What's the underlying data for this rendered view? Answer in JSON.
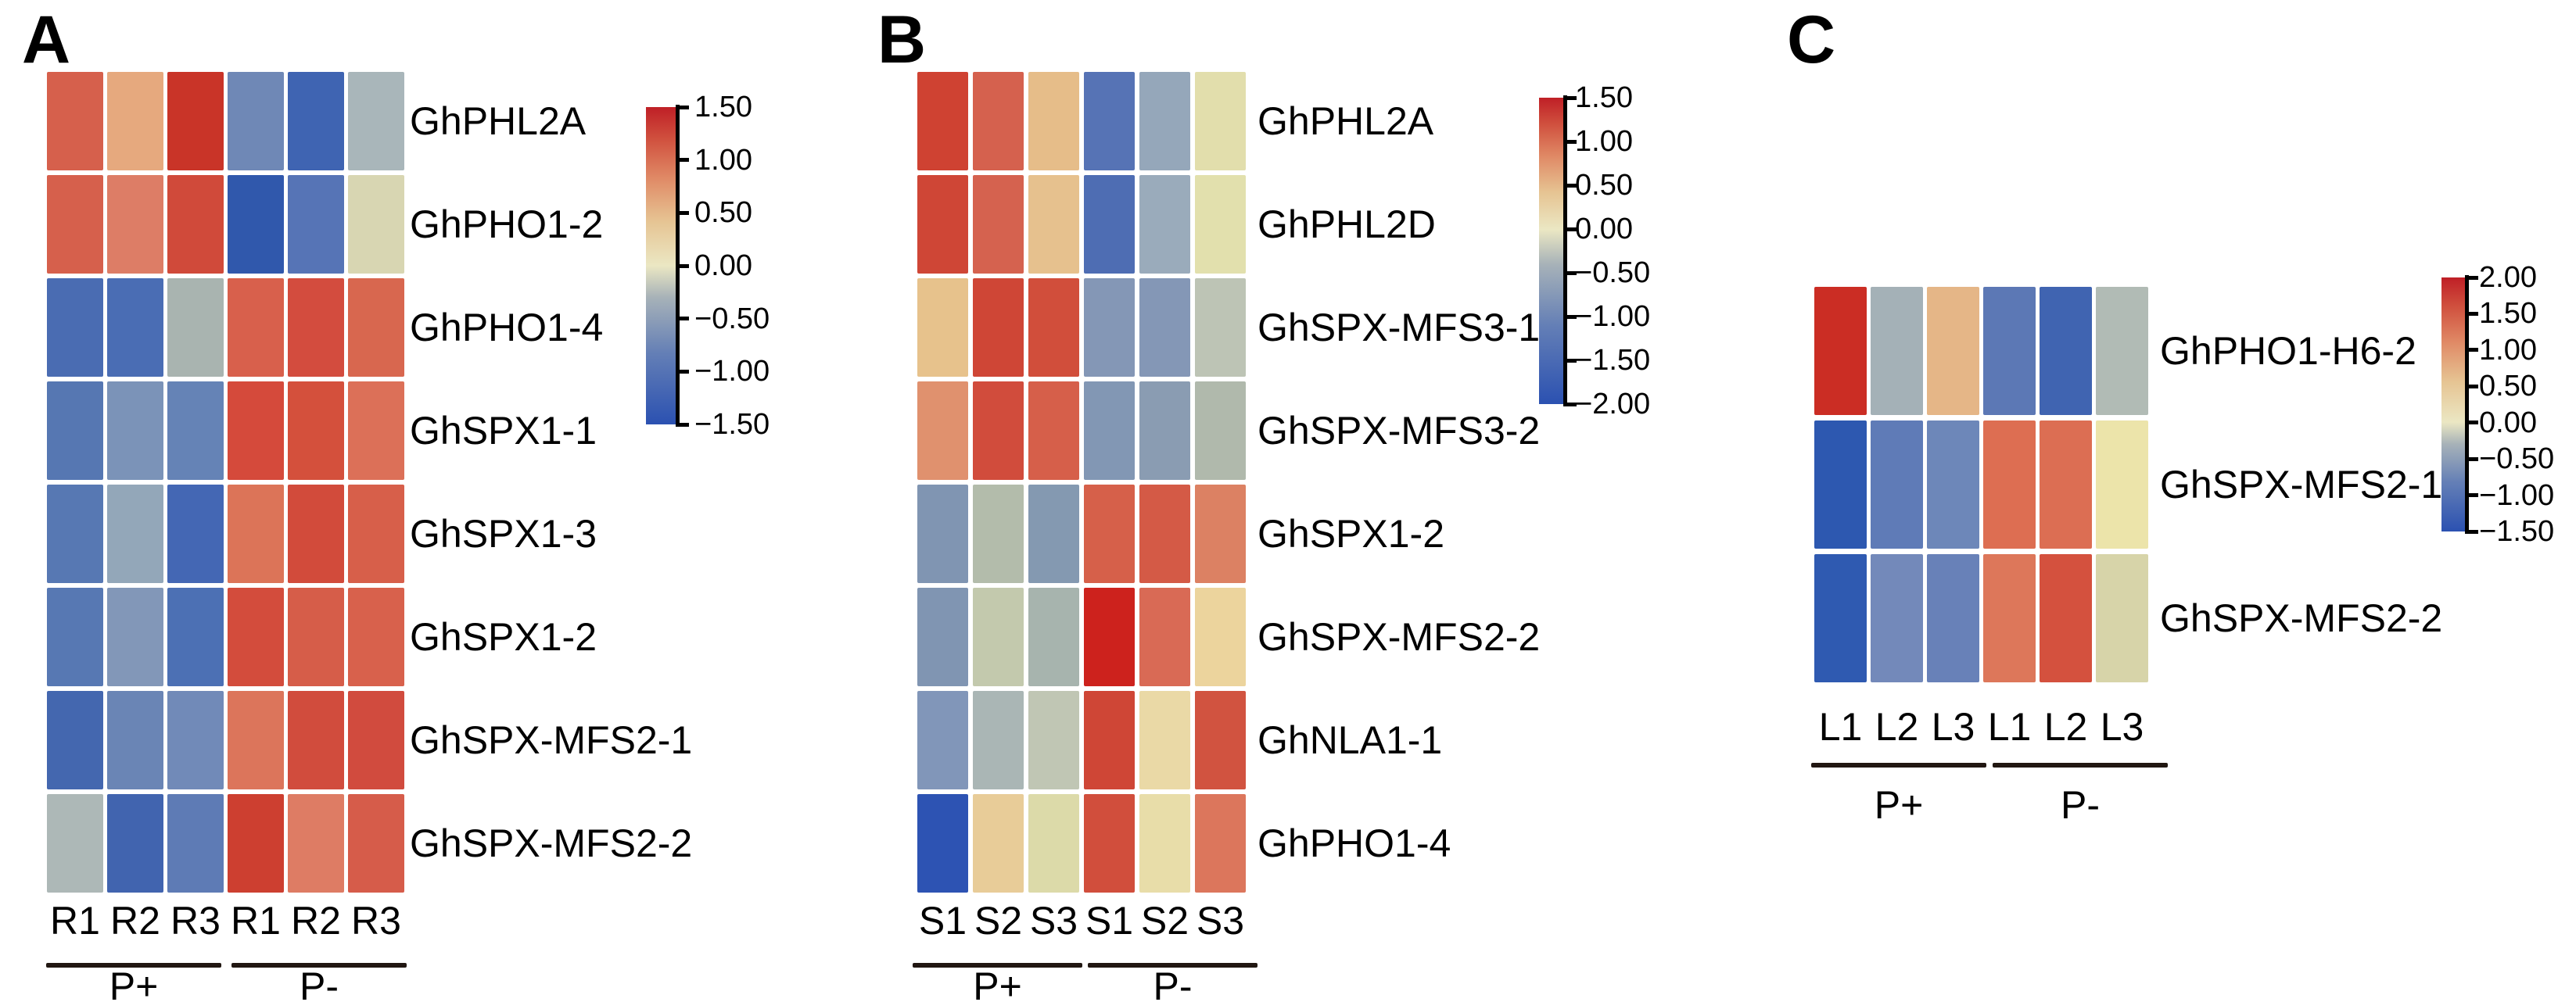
{
  "figure": {
    "colormap": {
      "low": "#2b51b1",
      "mid": "#ebe7c3",
      "high": "#bf1f26"
    },
    "panels": [
      {
        "label": "A",
        "genes": [
          "GhPHL2A",
          "GhPHO1-2",
          "GhPHO1-4",
          "GhSPX1-1",
          "GhSPX1-3",
          "GhSPX1-2",
          "GhSPX-MFS2-1",
          "GhSPX-MFS2-2"
        ],
        "col_labels": [
          "R1",
          "R2",
          "R3",
          "R1",
          "R2",
          "R3"
        ],
        "group_labels": [
          "P+",
          "P-"
        ],
        "colorbar_ticks": [
          "1.50",
          "1.00",
          "0.50",
          "0.00",
          "−0.50",
          "−1.00",
          "−1.50"
        ],
        "cell_colors": [
          [
            "#d6604c",
            "#e6a97e",
            "#c93428",
            "#6f88b6",
            "#3f64b2",
            "#a9b6ba"
          ],
          [
            "#d6604c",
            "#dd7d66",
            "#d04a3a",
            "#3058ac",
            "#5674b6",
            "#d8d6b2"
          ],
          [
            "#4a6cb2",
            "#4a6db4",
            "#a9b4b0",
            "#d8604c",
            "#d34c3e",
            "#d8674f"
          ],
          [
            "#5677b2",
            "#7b93b8",
            "#6583b6",
            "#d54a3b",
            "#d4503c",
            "#dc7058"
          ],
          [
            "#5778b3",
            "#93a7b9",
            "#4467b4",
            "#dc7458",
            "#d24b3b",
            "#d75f4a"
          ],
          [
            "#5778b3",
            "#8297b8",
            "#4c70b4",
            "#d34c3c",
            "#d65d49",
            "#d8614c"
          ],
          [
            "#4467af",
            "#6a85b5",
            "#718ab8",
            "#dc755b",
            "#d14c3d",
            "#d14b3e"
          ],
          [
            "#adb8b7",
            "#4164af",
            "#5e7bb5",
            "#cd3f30",
            "#de7c64",
            "#d65c4a"
          ]
        ]
      },
      {
        "label": "B",
        "genes": [
          "GhPHL2A",
          "GhPHL2D",
          "GhSPX-MFS3-1",
          "GhSPX-MFS3-2",
          "GhSPX1-2",
          "GhSPX-MFS2-2",
          "GhNLA1-1",
          "GhPHO1-4"
        ],
        "col_labels": [
          "S1",
          "S2",
          "S3",
          "S1",
          "S2",
          "S3"
        ],
        "group_labels": [
          "P+",
          "P-"
        ],
        "colorbar_ticks": [
          "1.50",
          "1.00",
          "0.50",
          "0.00",
          "−0.50",
          "−1.00",
          "−1.50",
          "−2.00"
        ],
        "cell_colors": [
          [
            "#cf4232",
            "#d5614e",
            "#e6bd89",
            "#5673b5",
            "#95a7ba",
            "#e2deac"
          ],
          [
            "#cf4636",
            "#d5624f",
            "#e6c18e",
            "#4e6db3",
            "#9aabbb",
            "#e2e0ad"
          ],
          [
            "#e7c28c",
            "#cf4636",
            "#d14e3b",
            "#8497b6",
            "#8497b6",
            "#bdc4b5"
          ],
          [
            "#e0916e",
            "#d14c3c",
            "#d65f4a",
            "#8297b4",
            "#8a9cb2",
            "#b0b9ac"
          ],
          [
            "#8095b2",
            "#b3bcab",
            "#8499b1",
            "#d6604a",
            "#d45a46",
            "#dc8163"
          ],
          [
            "#8095b2",
            "#c3c9ad",
            "#a7b4ae",
            "#cd221d",
            "#d96a55",
            "#ecd49d"
          ],
          [
            "#8196b9",
            "#aab6b5",
            "#c0c6b4",
            "#cf4636",
            "#ead9a6",
            "#d15340"
          ],
          [
            "#2d53b3",
            "#e8cc98",
            "#dcdaa9",
            "#d14e3c",
            "#e8dda9",
            "#dc765c"
          ]
        ]
      },
      {
        "label": "C",
        "genes": [
          "GhPHO1-H6-2",
          "GhSPX-MFS2-1",
          "GhSPX-MFS2-2"
        ],
        "col_labels": [
          "L1",
          "L2",
          "L3",
          "L1",
          "L2",
          "L3"
        ],
        "group_labels": [
          "P+",
          "P-"
        ],
        "colorbar_ticks": [
          "2.00",
          "1.50",
          "1.00",
          "0.50",
          "0.00",
          "−0.50",
          "−1.00",
          "−1.50"
        ],
        "cell_colors": [
          [
            "#cb2d24",
            "#a4b1b7",
            "#e5b687",
            "#5c78b5",
            "#4064b1",
            "#b1bbb5"
          ],
          [
            "#2d58b0",
            "#5f7bb7",
            "#6d87b9",
            "#dd6e52",
            "#dc6e53",
            "#ece4aa"
          ],
          [
            "#2f5ab1",
            "#7389ba",
            "#6881b8",
            "#dd775a",
            "#d4513e",
            "#d7d4a9"
          ]
        ]
      }
    ]
  },
  "chart_data": [
    {
      "type": "heatmap",
      "panel": "A",
      "rows": [
        "GhPHL2A",
        "GhPHO1-2",
        "GhPHO1-4",
        "GhSPX1-1",
        "GhSPX1-3",
        "GhSPX1-2",
        "GhSPX-MFS2-1",
        "GhSPX-MFS2-2"
      ],
      "columns": [
        "R1",
        "R2",
        "R3",
        "R1",
        "R2",
        "R3"
      ],
      "column_groups": [
        "P+",
        "P+",
        "P+",
        "P-",
        "P-",
        "P-"
      ],
      "values": [
        [
          0.9,
          0.5,
          1.3,
          -0.9,
          -1.25,
          -0.45
        ],
        [
          0.9,
          0.7,
          1.05,
          -1.45,
          -1.1,
          -0.2
        ],
        [
          -1.15,
          -1.15,
          -0.45,
          0.85,
          0.95,
          0.8
        ],
        [
          -1.0,
          -0.75,
          -0.9,
          1.0,
          0.95,
          0.7
        ],
        [
          -1.0,
          -0.6,
          -1.2,
          0.7,
          1.0,
          0.85
        ],
        [
          -1.0,
          -0.7,
          -1.15,
          0.95,
          0.85,
          0.8
        ],
        [
          -1.2,
          -0.9,
          -0.85,
          0.7,
          1.0,
          1.0
        ],
        [
          -0.45,
          -1.25,
          -1.0,
          1.1,
          0.65,
          0.9
        ]
      ],
      "zlim": [
        -1.5,
        1.5
      ],
      "colorbar_ticks": [
        1.5,
        1.0,
        0.5,
        0.0,
        -0.5,
        -1.0,
        -1.5
      ],
      "colormap": "diverging blue-cream-red",
      "legend_position": "right",
      "grid": "off"
    },
    {
      "type": "heatmap",
      "panel": "B",
      "rows": [
        "GhPHL2A",
        "GhPHL2D",
        "GhSPX-MFS3-1",
        "GhSPX-MFS3-2",
        "GhSPX1-2",
        "GhSPX-MFS2-2",
        "GhNLA1-1",
        "GhPHO1-4"
      ],
      "columns": [
        "S1",
        "S2",
        "S3",
        "S1",
        "S2",
        "S3"
      ],
      "column_groups": [
        "P+",
        "P+",
        "P+",
        "P-",
        "P-",
        "P-"
      ],
      "values": [
        [
          1.15,
          0.95,
          0.45,
          -1.5,
          -1.0,
          -0.15
        ],
        [
          1.1,
          0.95,
          0.45,
          -1.55,
          -0.95,
          -0.15
        ],
        [
          0.45,
          1.1,
          1.05,
          -1.15,
          -1.15,
          -0.6
        ],
        [
          0.65,
          1.1,
          1.0,
          -1.2,
          -1.15,
          -0.7
        ],
        [
          -1.2,
          -0.6,
          -1.15,
          1.0,
          1.05,
          0.7
        ],
        [
          -1.2,
          -0.4,
          -0.75,
          1.45,
          0.9,
          0.25
        ],
        [
          -1.15,
          -0.8,
          -0.55,
          1.1,
          0.2,
          1.0
        ],
        [
          -2.0,
          0.3,
          -0.1,
          1.0,
          0.1,
          0.75
        ]
      ],
      "zlim": [
        -2.0,
        1.5
      ],
      "colorbar_ticks": [
        1.5,
        1.0,
        0.5,
        0.0,
        -0.5,
        -1.0,
        -1.5,
        -2.0
      ],
      "colormap": "diverging blue-cream-red",
      "legend_position": "right",
      "grid": "off"
    },
    {
      "type": "heatmap",
      "panel": "C",
      "rows": [
        "GhPHO1-H6-2",
        "GhSPX-MFS2-1",
        "GhSPX-MFS2-2"
      ],
      "columns": [
        "L1",
        "L2",
        "L3",
        "L1",
        "L2",
        "L3"
      ],
      "column_groups": [
        "P+",
        "P+",
        "P+",
        "P-",
        "P-",
        "P-"
      ],
      "values": [
        [
          1.9,
          -0.3,
          0.8,
          -0.8,
          -1.1,
          -0.3
        ],
        [
          -1.4,
          -0.85,
          -0.75,
          1.1,
          1.1,
          0.4
        ],
        [
          -1.35,
          -0.7,
          -0.75,
          1.05,
          1.35,
          0.2
        ]
      ],
      "zlim": [
        -1.5,
        2.0
      ],
      "colorbar_ticks": [
        2.0,
        1.5,
        1.0,
        0.5,
        0.0,
        -0.5,
        -1.0,
        -1.5
      ],
      "colormap": "diverging blue-cream-red",
      "legend_position": "right",
      "grid": "off"
    }
  ]
}
